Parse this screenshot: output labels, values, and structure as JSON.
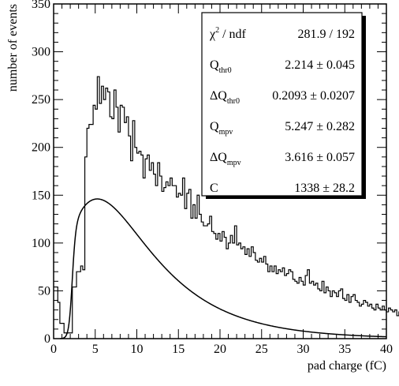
{
  "chart_data": {
    "type": "line",
    "title": "",
    "xlabel": "pad charge (fC)",
    "ylabel": "number of events",
    "xlim": [
      0,
      40
    ],
    "ylim": [
      0,
      350
    ],
    "xticks": [
      0,
      5,
      10,
      15,
      20,
      25,
      30,
      35,
      40
    ],
    "yticks": [
      0,
      50,
      100,
      150,
      200,
      250,
      300,
      350
    ],
    "grid": false,
    "series": [
      {
        "kind": "histogram",
        "bin_width": 0.25,
        "x_start": 0,
        "values": [
          54,
          54,
          38,
          16,
          16,
          6,
          6,
          6,
          6,
          54,
          54,
          70,
          70,
          76,
          72,
          190,
          220,
          224,
          224,
          244,
          240,
          274,
          246,
          264,
          250,
          262,
          258,
          232,
          230,
          260,
          242,
          216,
          244,
          242,
          226,
          232,
          212,
          186,
          228,
          200,
          194,
          196,
          192,
          168,
          188,
          192,
          176,
          184,
          172,
          160,
          184,
          170,
          154,
          158,
          164,
          160,
          168,
          160,
          160,
          148,
          152,
          150,
          168,
          136,
          152,
          156,
          126,
          140,
          126,
          150,
          130,
          122,
          118,
          118,
          120,
          128,
          112,
          110,
          104,
          110,
          102,
          112,
          106,
          94,
          100,
          108,
          100,
          118,
          98,
          100,
          94,
          96,
          88,
          94,
          86,
          96,
          90,
          82,
          80,
          84,
          80,
          86,
          78,
          70,
          76,
          70,
          76,
          68,
          72,
          70,
          74,
          66,
          68,
          72,
          70,
          62,
          60,
          58,
          64,
          60,
          56,
          66,
          72,
          58,
          60,
          56,
          58,
          52,
          50,
          60,
          48,
          54,
          50,
          44,
          50,
          48,
          44,
          50,
          52,
          42,
          40,
          46,
          38,
          44,
          46,
          40,
          38,
          34,
          36,
          40,
          38,
          34,
          36,
          32,
          30,
          36,
          32,
          30,
          34,
          30,
          28,
          32,
          30,
          28,
          30,
          24,
          28,
          26,
          30,
          24,
          22,
          26,
          20,
          24,
          22,
          24,
          20,
          26,
          22,
          20,
          18,
          20,
          24,
          22,
          18,
          20,
          16,
          18,
          20,
          18,
          22,
          20,
          16,
          22,
          18,
          16,
          16,
          20,
          14,
          18
        ]
      },
      {
        "kind": "fit",
        "name": "",
        "params": {
          "thr": 2.214,
          "dthr": 0.2093,
          "mpv": 5.247,
          "dmpv": 3.616,
          "C": 1338
        }
      }
    ]
  },
  "stats": [
    {
      "label": "χ",
      "sup": "2",
      "sub": "",
      "suffix": " / ndf",
      "value": "281.9 / 192"
    },
    {
      "label": "Q",
      "sup": "",
      "sub": "thr0",
      "suffix": "",
      "value": "2.214 ± 0.045"
    },
    {
      "label": "ΔQ",
      "sup": "",
      "sub": "thr0",
      "suffix": "",
      "value": "0.2093 ± 0.0207"
    },
    {
      "label": "Q",
      "sup": "",
      "sub": "mpv",
      "suffix": "",
      "value": "5.247 ± 0.282"
    },
    {
      "label": "ΔQ",
      "sup": "",
      "sub": "mpv",
      "suffix": "",
      "value": "3.616 ± 0.057"
    },
    {
      "label": "C",
      "sup": "",
      "sub": "",
      "suffix": "",
      "value": "1338 ± 28.2"
    }
  ]
}
